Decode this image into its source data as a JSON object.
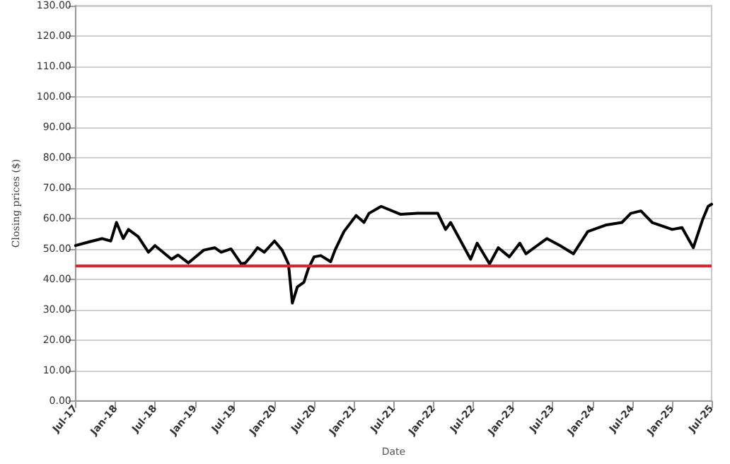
{
  "chart_data": {
    "type": "line",
    "xlabel": "Date",
    "ylabel": "Closing prices ($)",
    "x": [
      "2017-07-01",
      "2017-09-01",
      "2017-11-01",
      "2017-12-10",
      "2018-01-05",
      "2018-02-05",
      "2018-03-01",
      "2018-04-15",
      "2018-06-01",
      "2018-07-01",
      "2018-09-15",
      "2018-10-15",
      "2018-12-01",
      "2019-02-10",
      "2019-04-01",
      "2019-05-01",
      "2019-06-15",
      "2019-08-01",
      "2019-08-20",
      "2019-09-20",
      "2019-10-15",
      "2019-11-15",
      "2020-01-01",
      "2020-02-05",
      "2020-03-05",
      "2020-03-23",
      "2020-04-15",
      "2020-05-15",
      "2020-06-05",
      "2020-07-01",
      "2020-08-01",
      "2020-09-15",
      "2020-10-05",
      "2020-11-15",
      "2021-01-10",
      "2021-02-15",
      "2021-03-10",
      "2021-05-05",
      "2021-08-01",
      "2021-10-20",
      "2022-01-20",
      "2022-02-25",
      "2022-03-20",
      "2022-06-20",
      "2022-07-20",
      "2022-09-15",
      "2022-10-25",
      "2022-12-15",
      "2023-02-01",
      "2023-03-01",
      "2023-06-05",
      "2023-08-05",
      "2023-10-05",
      "2023-12-10",
      "2024-03-05",
      "2024-05-15",
      "2024-06-25",
      "2024-08-10",
      "2024-10-01",
      "2025-01-01",
      "2025-02-15",
      "2025-04-08",
      "2025-05-20",
      "2025-06-15",
      "2025-07-01"
    ],
    "series": [
      {
        "color": "#000000",
        "values": [
          51.1,
          52.3,
          53.4,
          52.6,
          58.7,
          53.4,
          56.4,
          54.0,
          48.9,
          51.1,
          46.6,
          48.0,
          45.4,
          49.6,
          50.4,
          48.9,
          50.0,
          45.1,
          45.4,
          48.0,
          50.4,
          48.9,
          52.6,
          49.6,
          45.1,
          32.2,
          37.5,
          39.0,
          43.6,
          47.4,
          47.8,
          45.8,
          49.6,
          55.7,
          61.0,
          58.7,
          61.7,
          64.0,
          61.4,
          61.7,
          61.7,
          56.4,
          58.7,
          46.6,
          51.9,
          45.1,
          50.4,
          47.4,
          51.9,
          48.4,
          53.4,
          51.1,
          48.4,
          55.7,
          57.9,
          58.7,
          61.7,
          62.5,
          58.7,
          56.4,
          57.0,
          50.4,
          59.5,
          64.0,
          64.7
        ]
      }
    ],
    "xlim": [
      "2017-07-01",
      "2025-07-01"
    ],
    "xticks": [
      {
        "value": "2017-07-01",
        "label": "Jul-17"
      },
      {
        "value": "2018-01-01",
        "label": "Jan-18"
      },
      {
        "value": "2018-07-01",
        "label": "Jul-18"
      },
      {
        "value": "2019-01-01",
        "label": "Jan-19"
      },
      {
        "value": "2019-07-01",
        "label": "Jul-19"
      },
      {
        "value": "2020-01-01",
        "label": "Jan-20"
      },
      {
        "value": "2020-07-01",
        "label": "Jul-20"
      },
      {
        "value": "2021-01-01",
        "label": "Jan-21"
      },
      {
        "value": "2021-07-01",
        "label": "Jul-21"
      },
      {
        "value": "2022-01-01",
        "label": "Jan-22"
      },
      {
        "value": "2022-07-01",
        "label": "Jul-22"
      },
      {
        "value": "2023-01-01",
        "label": "Jan-23"
      },
      {
        "value": "2023-07-01",
        "label": "Jul-23"
      },
      {
        "value": "2024-01-01",
        "label": "Jan-24"
      },
      {
        "value": "2024-07-01",
        "label": "Jul-24"
      },
      {
        "value": "2025-01-01",
        "label": "Jan-25"
      },
      {
        "value": "2025-07-01",
        "label": "Jul-25"
      }
    ],
    "ylim": [
      0,
      130
    ],
    "yticks": [
      {
        "value": 0,
        "label": "0.00"
      },
      {
        "value": 10,
        "label": "10.00"
      },
      {
        "value": 20,
        "label": "20.00"
      },
      {
        "value": 30,
        "label": "30.00"
      },
      {
        "value": 40,
        "label": "40.00"
      },
      {
        "value": 50,
        "label": "50.00"
      },
      {
        "value": 60,
        "label": "60.00"
      },
      {
        "value": 70,
        "label": "70.00"
      },
      {
        "value": 80,
        "label": "80.00"
      },
      {
        "value": 90,
        "label": "90.00"
      },
      {
        "value": 100,
        "label": "100.00"
      },
      {
        "value": 110,
        "label": "110.00"
      },
      {
        "value": 120,
        "label": "120.00"
      },
      {
        "value": 130,
        "label": "130.00"
      }
    ],
    "grid": "y",
    "marker": "none",
    "line_style": "solid",
    "ref_lines": [
      {
        "axis": "y",
        "value": 44.4,
        "color": "#e8202a"
      }
    ]
  }
}
